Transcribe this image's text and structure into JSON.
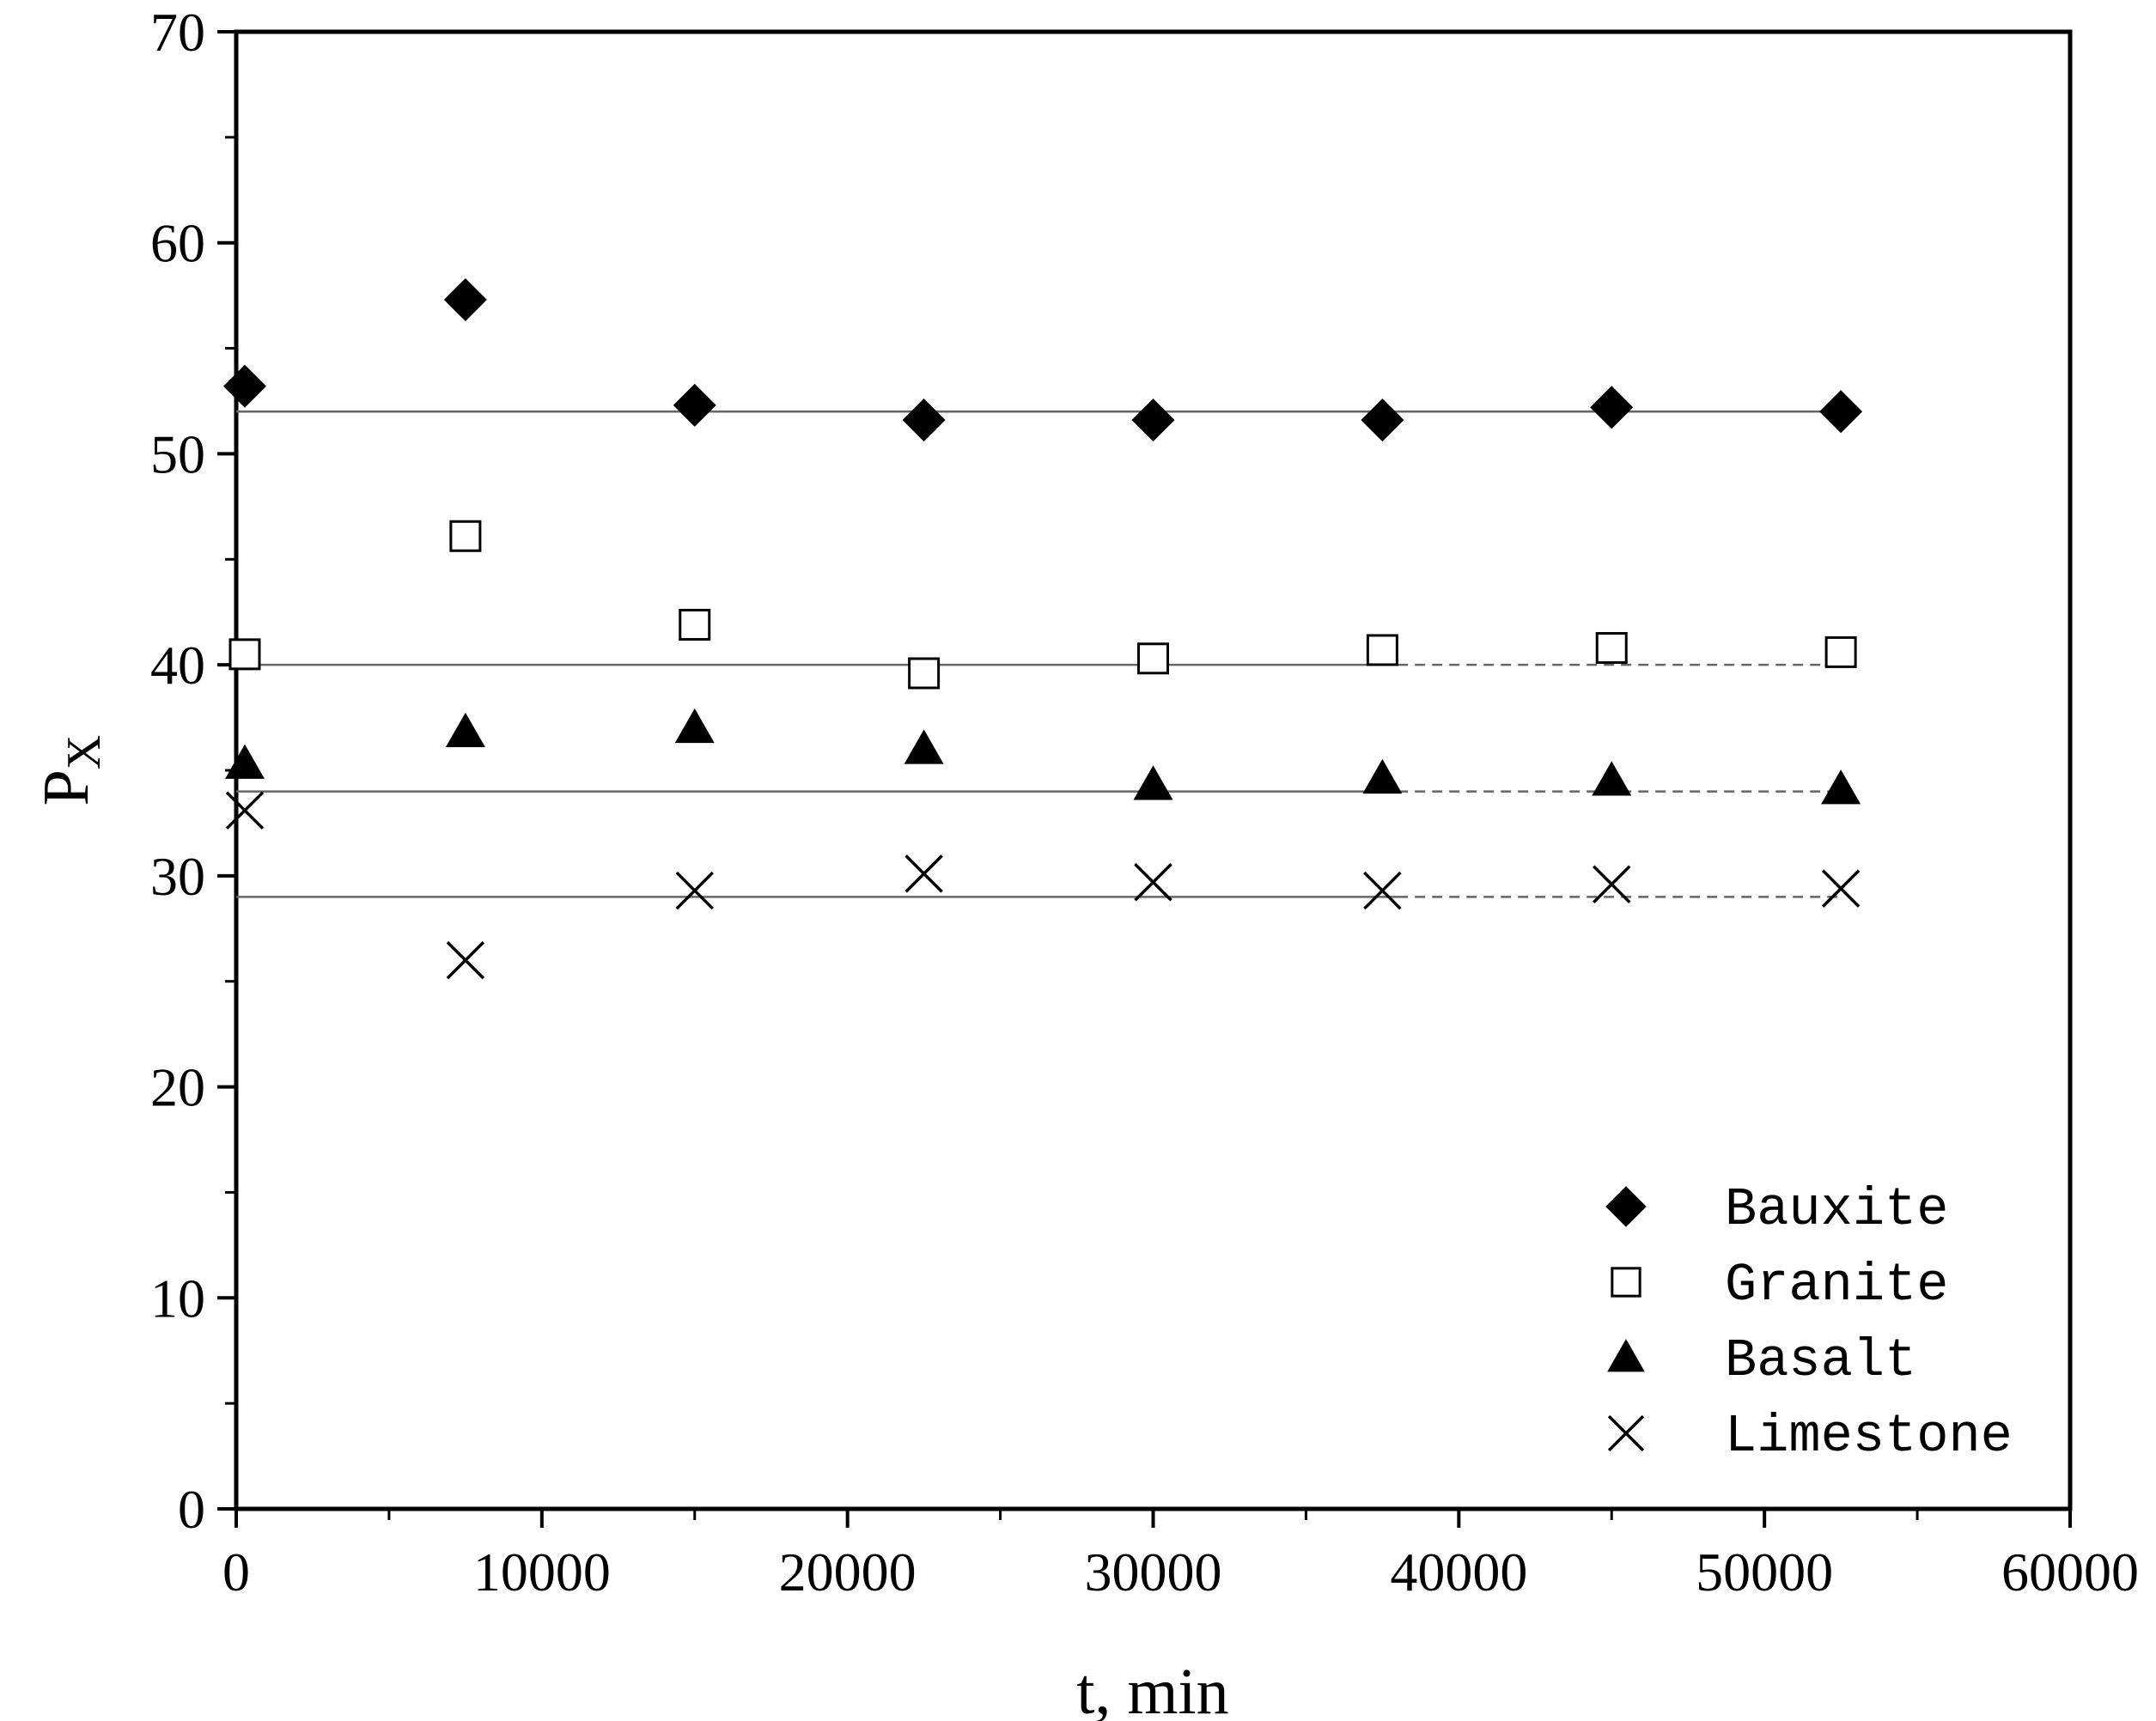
{
  "chart_data": {
    "type": "scatter",
    "xlabel": "t, min",
    "ylabel": "P",
    "ylabel_sub": "X",
    "xlim": [
      0,
      60000
    ],
    "ylim": [
      0,
      70
    ],
    "x_ticks": [
      0,
      10000,
      20000,
      30000,
      40000,
      50000,
      60000
    ],
    "y_ticks": [
      0,
      10,
      20,
      30,
      40,
      50,
      60,
      70
    ],
    "grid": false,
    "legend_position": "bottom-right",
    "series": [
      {
        "name": "Bauxite",
        "marker": "filled-diamond",
        "color": "#000000",
        "x": [
          0,
          7500,
          15000,
          22500,
          30000,
          37500,
          45000,
          52500
        ],
        "y": [
          53.2,
          57.3,
          52.3,
          51.6,
          51.6,
          51.6,
          52.2,
          52.0
        ],
        "reference_y": 52,
        "reference_solid_to_x": 52500
      },
      {
        "name": "Granite",
        "marker": "open-square",
        "color": "#000000",
        "x": [
          0,
          7500,
          15000,
          22500,
          30000,
          37500,
          45000,
          52500
        ],
        "y": [
          40.5,
          46.1,
          41.9,
          39.6,
          40.3,
          40.7,
          40.8,
          40.6
        ],
        "reference_y": 40,
        "reference_solid_to_x": 38000
      },
      {
        "name": "Basalt",
        "marker": "filled-triangle",
        "color": "#000000",
        "x": [
          0,
          7500,
          15000,
          22500,
          30000,
          37500,
          45000,
          52500
        ],
        "y": [
          35.3,
          36.8,
          37.0,
          36.0,
          34.3,
          34.6,
          34.5,
          34.1
        ],
        "reference_y": 34,
        "reference_solid_to_x": 38000
      },
      {
        "name": "Limestone",
        "marker": "cross",
        "color": "#000000",
        "x": [
          0,
          7500,
          15000,
          22500,
          30000,
          37500,
          45000,
          52500
        ],
        "y": [
          33.1,
          26.0,
          29.3,
          30.1,
          29.7,
          29.3,
          29.6,
          29.4
        ],
        "reference_y": 29,
        "reference_solid_to_x": 38000
      }
    ]
  }
}
